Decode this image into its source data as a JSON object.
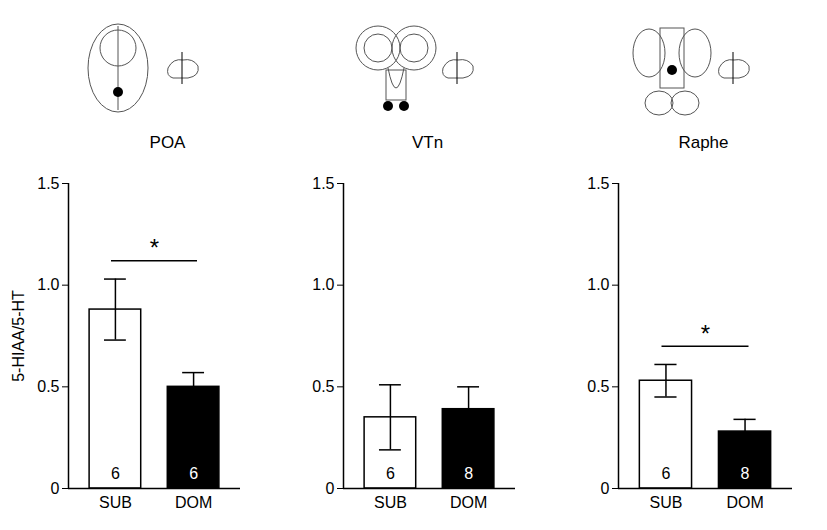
{
  "chart_data": [
    {
      "type": "bar",
      "title": "POA",
      "y_label": "5-HIAA/5-HT",
      "categories": [
        "SUB",
        "DOM"
      ],
      "values": [
        0.88,
        0.5
      ],
      "errors": [
        0.15,
        0.07
      ],
      "n": [
        6,
        6
      ],
      "colors": [
        "#ffffff",
        "#000000"
      ],
      "ylim": [
        0,
        1.5
      ],
      "yticks": [
        0,
        0.5,
        {
          "value": 1,
          "label": "1.0"
        },
        1.5
      ],
      "annotations": [
        {
          "text": "*",
          "from": "SUB",
          "to": "DOM"
        }
      ]
    },
    {
      "type": "bar",
      "title": "VTn",
      "categories": [
        "SUB",
        "DOM"
      ],
      "values": [
        0.35,
        0.39
      ],
      "errors": [
        0.16,
        0.11
      ],
      "n": [
        6,
        8
      ],
      "colors": [
        "#ffffff",
        "#000000"
      ],
      "ylim": [
        0,
        1.5
      ],
      "yticks": [
        0,
        0.5,
        {
          "value": 1,
          "label": "1.0"
        },
        1.5
      ]
    },
    {
      "type": "bar",
      "title": "Raphe",
      "categories": [
        "SUB",
        "DOM"
      ],
      "values": [
        0.53,
        0.28
      ],
      "errors": [
        0.08,
        0.06
      ],
      "n": [
        6,
        8
      ],
      "colors": [
        "#ffffff",
        "#000000"
      ],
      "ylim": [
        0,
        1.5
      ],
      "yticks": [
        0,
        0.5,
        {
          "value": 1,
          "label": "1.0"
        },
        1.5
      ],
      "annotations": [
        {
          "text": "*",
          "from": "SUB",
          "to": "DOM"
        }
      ]
    }
  ]
}
